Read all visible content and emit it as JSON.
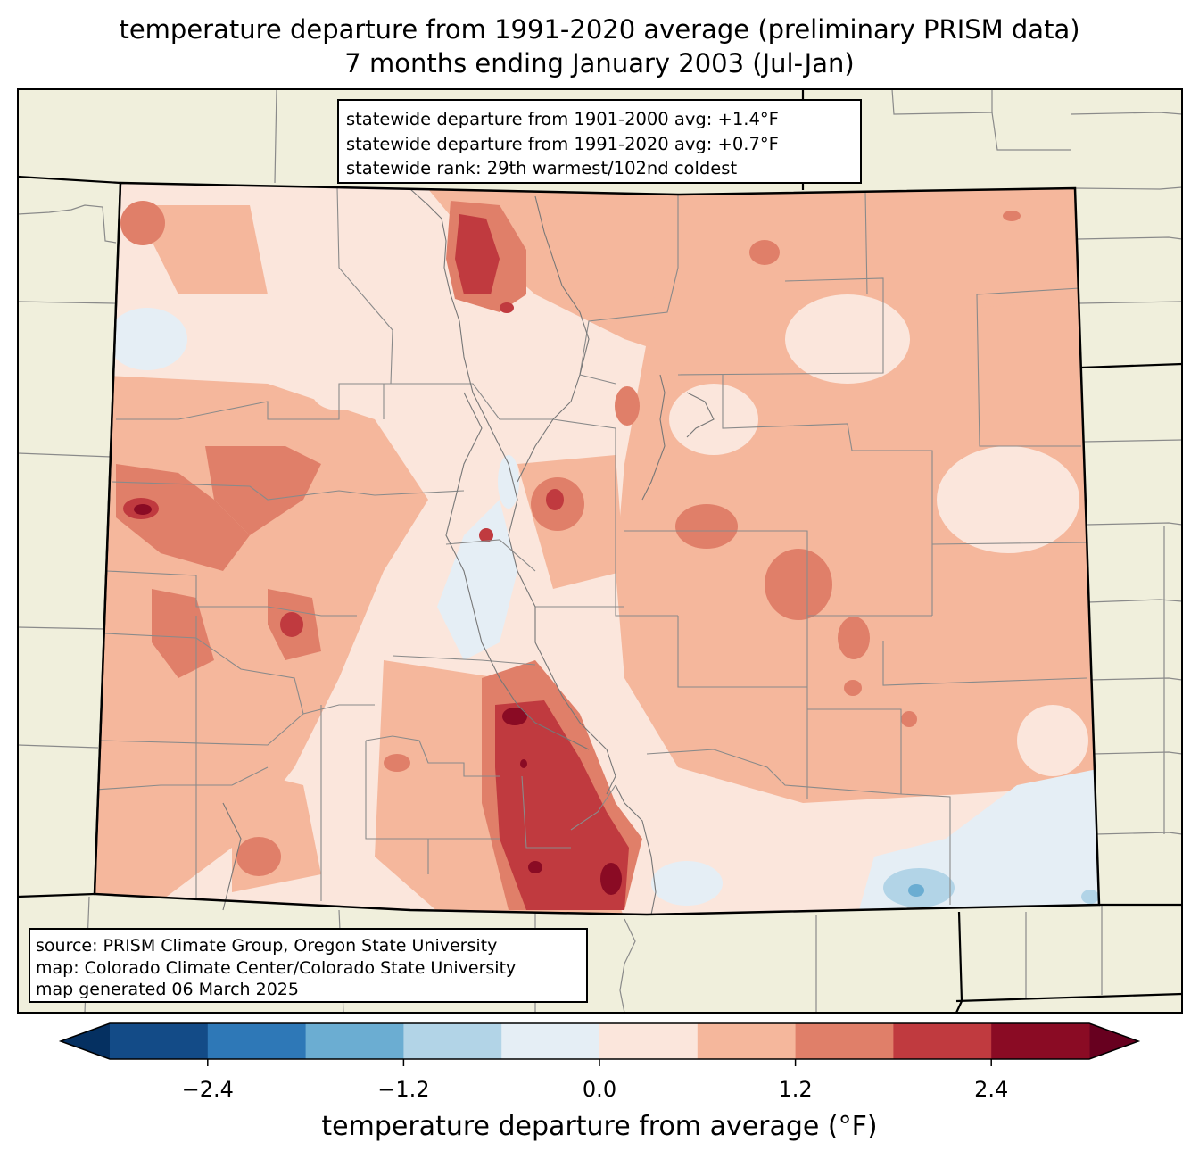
{
  "title": {
    "line1": "temperature departure from 1991-2020 average (preliminary PRISM data)",
    "line2": "7 months ending January 2003 (Jul-Jan)"
  },
  "stats": {
    "line1": "statewide departure from 1901-2000 avg: +1.4°F",
    "line2": "statewide departure from 1991-2020 avg: +0.7°F",
    "line3": "statewide rank: 29th warmest/102nd coldest"
  },
  "source": {
    "line1": "source: PRISM Climate Group, Oregon State University",
    "line2": "map: Colorado Climate Center/Colorado State University",
    "line3": "map generated 06 March 2025"
  },
  "colorbar": {
    "label": "temperature departure from average (°F)",
    "ticks": [
      "−2.4",
      "−1.2",
      "0.0",
      "1.2",
      "2.4"
    ],
    "tick_values": [
      -2.4,
      -1.2,
      0.0,
      1.2,
      2.4
    ],
    "range": [
      -3.0,
      3.0
    ],
    "bins": [
      {
        "from": -3.0,
        "to": -2.4,
        "color": "#134b87"
      },
      {
        "from": -2.4,
        "to": -1.8,
        "color": "#2e78b7"
      },
      {
        "from": -1.8,
        "to": -1.2,
        "color": "#6badd2"
      },
      {
        "from": -1.2,
        "to": -0.6,
        "color": "#b2d4e7"
      },
      {
        "from": -0.6,
        "to": 0.0,
        "color": "#e5eef5"
      },
      {
        "from": 0.0,
        "to": 0.6,
        "color": "#fbe6dc"
      },
      {
        "from": 0.6,
        "to": 1.2,
        "color": "#f5b79c"
      },
      {
        "from": 1.2,
        "to": 1.8,
        "color": "#e07f69"
      },
      {
        "from": 1.8,
        "to": 2.4,
        "color": "#c03a3f"
      },
      {
        "from": 2.4,
        "to": 3.0,
        "color": "#8a0b24"
      }
    ],
    "under_color": "#053061",
    "over_color": "#67001f"
  },
  "colors": {
    "land_outside": "#f0efdc",
    "county_lines": "#8a8a8a",
    "state_lines": "#000000"
  }
}
